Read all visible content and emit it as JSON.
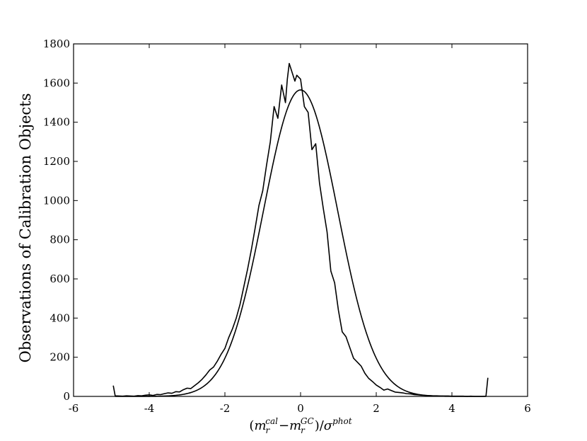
{
  "chart_data": {
    "type": "line",
    "title": "",
    "xlabel": "",
    "ylabel": "Observations of Calibration Objects",
    "xlabel_parts": {
      "open": "(",
      "m1": "m",
      "sub1": "r",
      "sup1": "cal",
      "minus": "−",
      "m2": "m",
      "sub2": "r",
      "sup2": "GC",
      "close": ")/",
      "sigma": "σ",
      "sigma_sup": "phot"
    },
    "xlim": [
      -6,
      6
    ],
    "ylim": [
      0,
      1800
    ],
    "xticks": [
      -6,
      -4,
      -2,
      0,
      2,
      4,
      6
    ],
    "yticks": [
      0,
      200,
      400,
      600,
      800,
      1000,
      1200,
      1400,
      1600,
      1800
    ],
    "xtick_labels": [
      "-6",
      "-4",
      "-2",
      "0",
      "2",
      "4",
      "6"
    ],
    "ytick_labels": [
      "0",
      "200",
      "400",
      "600",
      "800",
      "1000",
      "1200",
      "1400",
      "1600",
      "1800"
    ],
    "grid": false,
    "legend": "none",
    "series": [
      {
        "kind": "histogram",
        "color": "#000000",
        "x": [
          -4.95,
          -4.9,
          -4.8,
          -4.7,
          -4.6,
          -4.5,
          -4.4,
          -4.3,
          -4.2,
          -4.1,
          -4.0,
          -3.9,
          -3.8,
          -3.7,
          -3.6,
          -3.5,
          -3.4,
          -3.3,
          -3.2,
          -3.1,
          -3.0,
          -2.9,
          -2.8,
          -2.7,
          -2.6,
          -2.5,
          -2.4,
          -2.3,
          -2.2,
          -2.1,
          -2.0,
          -1.9,
          -1.8,
          -1.7,
          -1.6,
          -1.5,
          -1.4,
          -1.3,
          -1.2,
          -1.1,
          -1.0,
          -0.9,
          -0.8,
          -0.7,
          -0.6,
          -0.5,
          -0.4,
          -0.35,
          -0.3,
          -0.2,
          -0.15,
          -0.1,
          0.0,
          0.1,
          0.2,
          0.3,
          0.4,
          0.5,
          0.6,
          0.7,
          0.8,
          0.9,
          1.0,
          1.1,
          1.2,
          1.3,
          1.4,
          1.5,
          1.6,
          1.7,
          1.8,
          1.9,
          2.0,
          2.1,
          2.2,
          2.3,
          2.4,
          2.5,
          2.6,
          2.7,
          2.8,
          2.9,
          3.0,
          3.1,
          3.2,
          3.3,
          3.4,
          3.5,
          3.6,
          3.7,
          3.8,
          3.9,
          4.0,
          4.1,
          4.2,
          4.3,
          4.4,
          4.5,
          4.6,
          4.7,
          4.8,
          4.9,
          4.95
        ],
        "y": [
          55,
          3,
          2,
          1,
          3,
          2,
          1,
          4,
          3,
          6,
          8,
          5,
          10,
          9,
          14,
          18,
          16,
          24,
          23,
          34,
          42,
          40,
          55,
          70,
          88,
          110,
          135,
          150,
          180,
          215,
          245,
          300,
          345,
          400,
          470,
          560,
          650,
          750,
          860,
          975,
          1050,
          1180,
          1300,
          1480,
          1420,
          1590,
          1500,
          1620,
          1700,
          1640,
          1610,
          1640,
          1620,
          1480,
          1450,
          1260,
          1290,
          1090,
          960,
          840,
          640,
          580,
          440,
          330,
          305,
          250,
          195,
          175,
          155,
          118,
          92,
          76,
          58,
          46,
          32,
          38,
          30,
          22,
          20,
          18,
          14,
          13,
          9,
          8,
          6,
          5,
          4,
          3,
          3,
          2,
          2,
          2,
          1,
          1,
          1,
          1,
          0,
          1,
          0,
          0,
          0,
          1,
          95
        ]
      },
      {
        "kind": "gaussian-fit",
        "color": "#000000",
        "amplitude": 1565,
        "mean": 0.0,
        "sigma": 0.98,
        "x_range": [
          -4.9,
          4.9
        ]
      }
    ]
  }
}
